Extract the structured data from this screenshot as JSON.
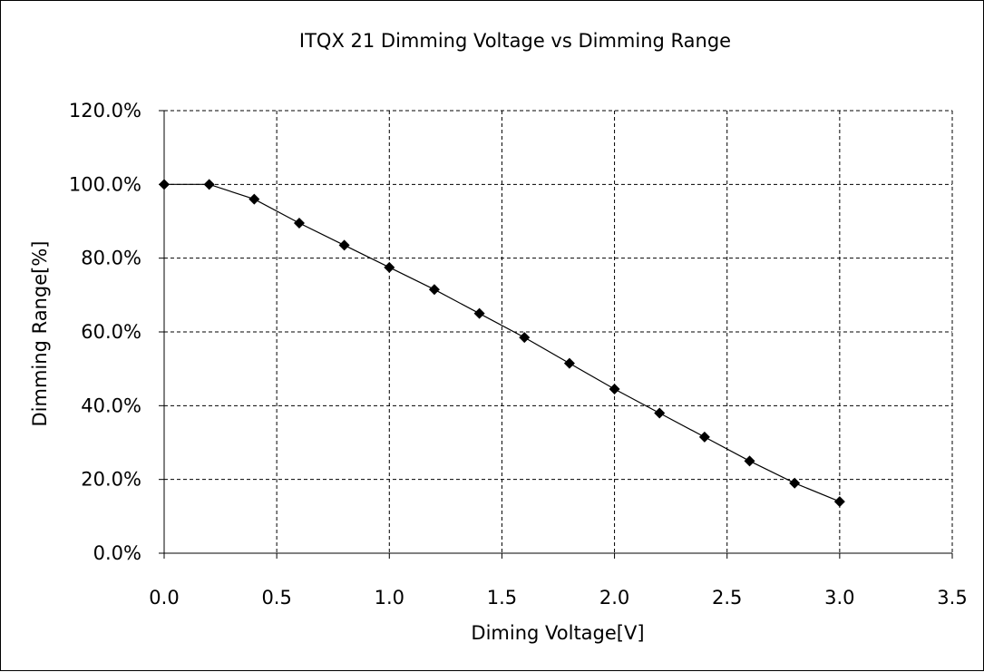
{
  "chart_data": {
    "type": "line",
    "title": "ITQX 21 Dimming Voltage vs Dimming Range",
    "xlabel": "Diming Voltage[V]",
    "ylabel": "Dimming Range[%]",
    "xlim": [
      0,
      3.5
    ],
    "ylim": [
      0,
      120
    ],
    "x_ticks": [
      0,
      0.5,
      1.0,
      1.5,
      2.0,
      2.5,
      3.0,
      3.5
    ],
    "x_tick_labels": [
      "0.0",
      "0.5",
      "1.0",
      "1.5",
      "2.0",
      "2.5",
      "3.0",
      "3.5"
    ],
    "y_ticks": [
      0,
      20,
      40,
      60,
      80,
      100,
      120
    ],
    "y_tick_labels": [
      "0.0%",
      "20.0%",
      "40.0%",
      "60.0%",
      "80.0%",
      "100.0%",
      "120.0%"
    ],
    "grid": true,
    "grid_style": "dashed",
    "marker": "diamond",
    "line_color": "#000000",
    "marker_color": "#000000",
    "series": [
      {
        "x": [
          0,
          0.2,
          0.4,
          0.6,
          0.8,
          1.0,
          1.2,
          1.4,
          1.6,
          1.8,
          2.0,
          2.2,
          2.4,
          2.6,
          2.8,
          3.0
        ],
        "y": [
          100,
          100,
          96,
          89.5,
          83.5,
          77.5,
          71.5,
          65,
          58.5,
          51.5,
          44.5,
          38,
          31.5,
          25,
          19,
          14
        ]
      }
    ]
  }
}
